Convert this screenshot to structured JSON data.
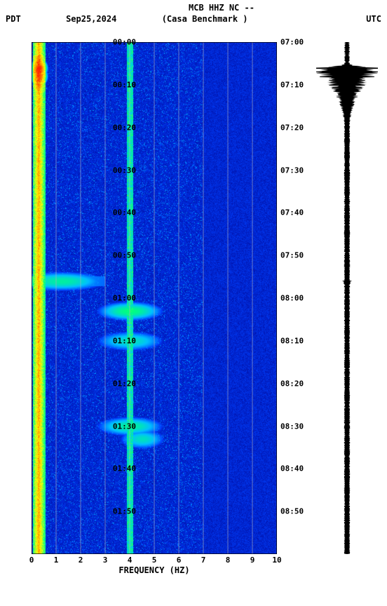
{
  "header": {
    "station": "MCB HHZ NC --",
    "location": "(Casa Benchmark )"
  },
  "subheader": {
    "left_tz": "PDT",
    "date": "Sep25,2024",
    "right_tz": "UTC"
  },
  "spectrogram": {
    "type": "heatmap",
    "xlabel": "FREQUENCY (HZ)",
    "xlim": [
      0,
      10
    ],
    "xtick_step": 1,
    "ylim_minutes": [
      0,
      120
    ],
    "gridline_color": "#b0b0c0",
    "background_color": "#00008b",
    "colormap": {
      "low": "#00008b",
      "mid1": "#0040ff",
      "mid2": "#00c0ff",
      "high1": "#00ff80",
      "high2": "#ffff00",
      "peak": "#ff2000"
    },
    "left_ticks": [
      "00:00",
      "00:10",
      "00:20",
      "00:30",
      "00:40",
      "00:50",
      "01:00",
      "01:10",
      "01:20",
      "01:30",
      "01:40",
      "01:50"
    ],
    "right_ticks": [
      "07:00",
      "07:10",
      "07:20",
      "07:30",
      "07:40",
      "07:50",
      "08:00",
      "08:10",
      "08:20",
      "08:30",
      "08:40",
      "08:50"
    ],
    "low_freq_band": {
      "freq_range": [
        0.1,
        0.5
      ],
      "intensity": "peak",
      "continuous": true
    },
    "vertical_bands": [
      {
        "freq": 4.0,
        "intensity": 0.6
      },
      {
        "freq": 0.3,
        "intensity": 1.0
      }
    ],
    "hot_spots": [
      {
        "time_min": 6,
        "freq": 0.3,
        "mag": 1.0,
        "width": 0.4
      },
      {
        "time_min": 8,
        "freq": 0.3,
        "mag": 0.95,
        "width": 0.4
      },
      {
        "time_min": 56,
        "freq": 1.2,
        "mag": 0.5,
        "width": 2.0
      },
      {
        "time_min": 63,
        "freq": 4.0,
        "mag": 0.55,
        "width": 1.5
      },
      {
        "time_min": 70,
        "freq": 4.0,
        "mag": 0.45,
        "width": 1.5
      },
      {
        "time_min": 90,
        "freq": 4.0,
        "mag": 0.5,
        "width": 1.5
      },
      {
        "time_min": 93,
        "freq": 4.5,
        "mag": 0.45,
        "width": 1.0
      }
    ],
    "noise_speckle": {
      "density": 0.25,
      "min_mag": 0.05,
      "max_mag": 0.35
    }
  },
  "waveform": {
    "type": "vertical-waveform",
    "color": "#000000",
    "baseline_amp": 0.04,
    "events": [
      {
        "time_min": 6,
        "peak_amp": 1.0,
        "decay_min": 10
      },
      {
        "time_min": 56,
        "peak_amp": 0.12,
        "decay_min": 4
      }
    ],
    "noise_amp": 0.06
  }
}
